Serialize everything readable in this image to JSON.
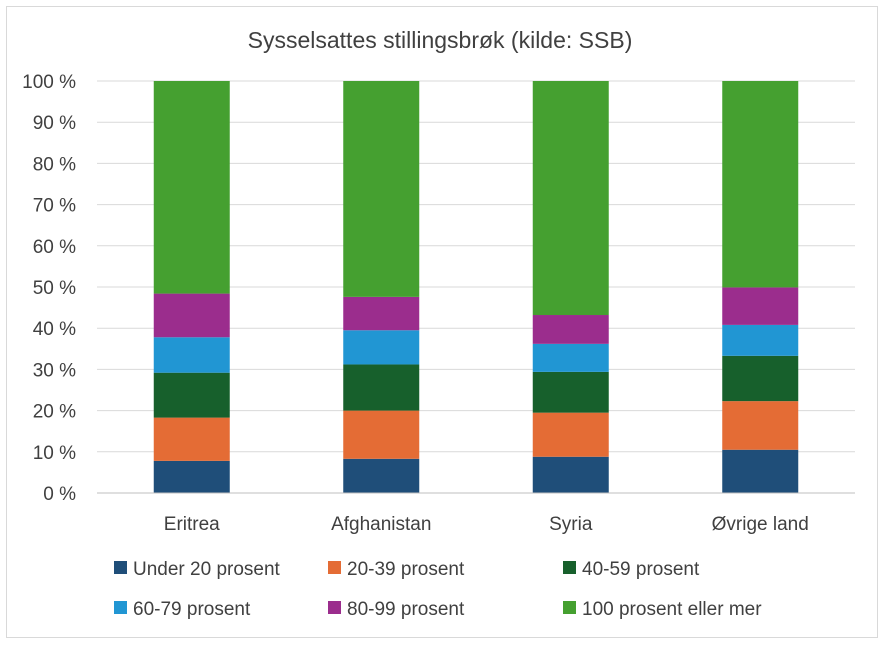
{
  "chart_data": {
    "type": "bar",
    "stacked": true,
    "percent_stacked": true,
    "title": "Sysselsattes stillingsbrøk (kilde: SSB)",
    "xlabel": "",
    "ylabel": "",
    "ylim": [
      0,
      100
    ],
    "y_ticks": [
      0,
      10,
      20,
      30,
      40,
      50,
      60,
      70,
      80,
      90,
      100
    ],
    "y_tick_labels": [
      "0 %",
      "10 %",
      "20 %",
      "30 %",
      "40 %",
      "50 %",
      "60 %",
      "70 %",
      "80 %",
      "90 %",
      "100 %"
    ],
    "grid": true,
    "legend_position": "bottom",
    "categories": [
      "Eritrea",
      "Afghanistan",
      "Syria",
      "Øvrige land"
    ],
    "series": [
      {
        "name": "Under 20 prosent",
        "color": "#1f4e79",
        "values": [
          7.8,
          8.3,
          8.8,
          10.5
        ]
      },
      {
        "name": "20-39 prosent",
        "color": "#e46c35",
        "values": [
          10.5,
          11.7,
          10.7,
          11.8
        ]
      },
      {
        "name": "40-59 prosent",
        "color": "#17602c",
        "values": [
          10.9,
          11.2,
          9.9,
          11.0
        ]
      },
      {
        "name": "60-79 prosent",
        "color": "#2196d3",
        "values": [
          8.6,
          8.3,
          6.8,
          7.5
        ]
      },
      {
        "name": "80-99 prosent",
        "color": "#9b2d8d",
        "values": [
          10.6,
          8.1,
          7.0,
          9.1
        ]
      },
      {
        "name": "100 prosent eller mer",
        "color": "#45a030",
        "values": [
          51.6,
          52.4,
          56.8,
          50.1
        ]
      }
    ]
  }
}
